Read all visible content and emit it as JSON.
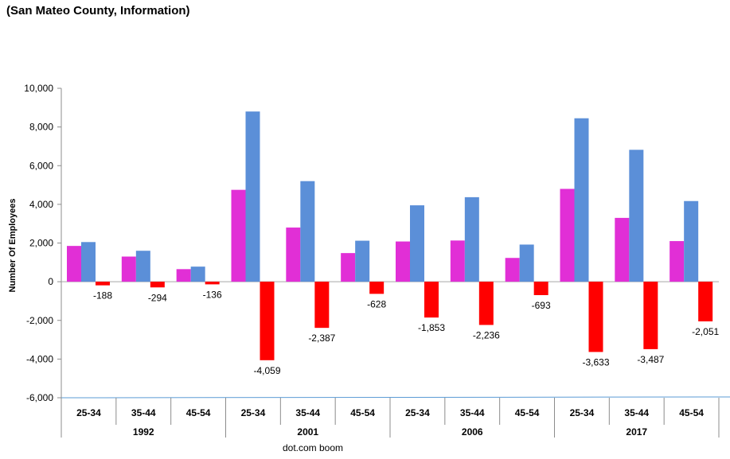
{
  "chart_data": {
    "type": "bar",
    "title": "(San Mateo County, Information)",
    "ylabel": "Number Of Employees",
    "xlabel": "dot.com boom",
    "ylim": [
      -6000,
      10000
    ],
    "yticks": [
      "10,000",
      "8,000",
      "6,000",
      "4,000",
      "2,000",
      "0",
      "-2,000",
      "-4,000",
      "-6,000"
    ],
    "ytick_values": [
      10000,
      8000,
      6000,
      4000,
      2000,
      0,
      -2000,
      -4000,
      -6000
    ],
    "groups": [
      "1992",
      "2001",
      "2006",
      "2017"
    ],
    "categories": [
      "25-34",
      "35-44",
      "45-54",
      "25-34",
      "35-44",
      "45-54",
      "25-34",
      "35-44",
      "45-54",
      "25-34",
      "35-44",
      "45-54"
    ],
    "series": [
      {
        "color": "#e12fd6",
        "values": [
          1850,
          1300,
          650,
          4750,
          2800,
          1480,
          2080,
          2130,
          1230,
          4800,
          3300,
          2100
        ]
      },
      {
        "color": "#5b8fd8",
        "values": [
          2050,
          1600,
          780,
          8800,
          5200,
          2120,
          3950,
          4370,
          1920,
          8450,
          6820,
          4170
        ]
      },
      {
        "color": "#ff0000",
        "values": [
          -188,
          -294,
          -136,
          -4059,
          -2387,
          -628,
          -1853,
          -2236,
          -693,
          -3633,
          -3487,
          -2051
        ]
      }
    ],
    "data_labels": [
      "-188",
      "-294",
      "-136",
      "-4,059",
      "-2,387",
      "-628",
      "-1,853",
      "-2,236",
      "-693",
      "-3,633",
      "-3,487",
      "-2,051"
    ],
    "grid": false
  }
}
